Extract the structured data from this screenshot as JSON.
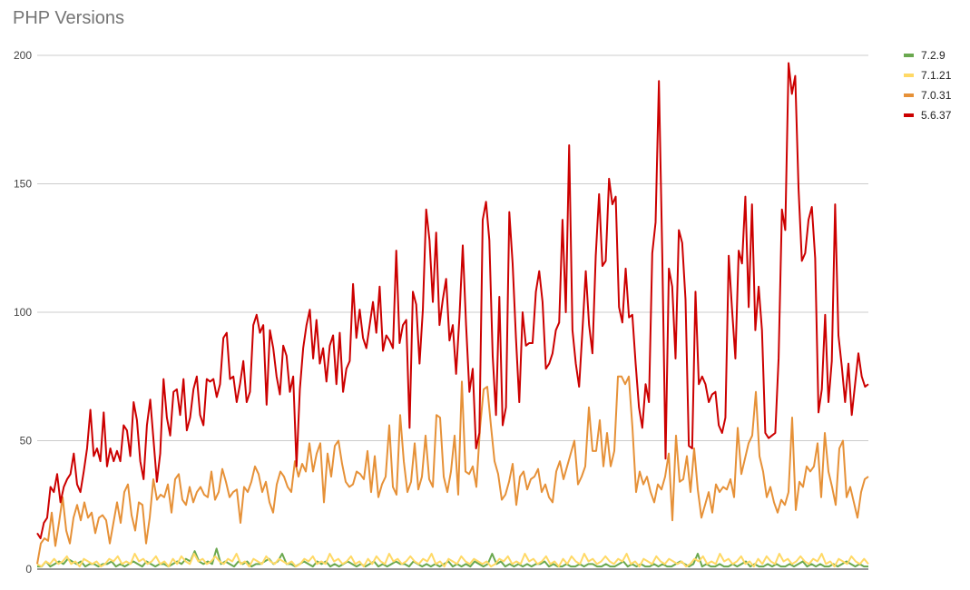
{
  "chart_data": {
    "type": "line",
    "title": "PHP Versions",
    "xlabel": "",
    "ylabel": "",
    "ylim": [
      0,
      200
    ],
    "yticks": [
      0,
      50,
      100,
      150,
      200
    ],
    "grid": true,
    "legend": "right",
    "series": [
      {
        "name": "7.2.9",
        "color": "#6aa84f",
        "values": [
          1,
          1,
          3,
          1,
          2,
          3,
          2,
          4,
          3,
          2,
          3,
          1,
          2,
          2,
          1,
          2,
          2,
          3,
          1,
          2,
          1,
          2,
          3,
          2,
          1,
          3,
          2,
          1,
          2,
          2,
          1,
          2,
          3,
          2,
          4,
          3,
          7,
          3,
          2,
          3,
          2,
          8,
          2,
          3,
          2,
          1,
          3,
          2,
          3,
          1,
          2,
          2,
          3,
          4,
          2,
          3,
          6,
          2,
          2,
          1,
          2,
          3,
          2,
          1,
          3,
          2,
          3,
          1,
          2,
          1,
          2,
          3,
          2,
          1,
          2,
          1,
          2,
          3,
          1,
          2,
          1,
          2,
          3,
          2,
          2,
          1,
          3,
          2,
          1,
          2,
          1,
          2,
          1,
          2,
          3,
          1,
          2,
          1,
          2,
          1,
          3,
          2,
          1,
          2,
          6,
          2,
          3,
          1,
          2,
          1,
          2,
          1,
          2,
          1,
          2,
          2,
          3,
          1,
          2,
          1,
          1,
          2,
          1,
          1,
          2,
          1,
          2,
          2,
          1,
          1,
          2,
          1,
          1,
          2,
          3,
          1,
          2,
          1,
          2,
          1,
          1,
          2,
          1,
          2,
          1,
          1,
          2,
          3,
          2,
          1,
          2,
          6,
          1,
          2,
          1,
          1,
          2,
          1,
          1,
          2,
          1,
          2,
          3,
          1,
          2,
          1,
          1,
          2,
          1,
          2,
          1,
          1,
          2,
          1,
          2,
          3,
          1,
          2,
          1,
          2,
          1,
          1,
          2,
          1,
          2,
          3,
          2,
          1,
          2,
          1,
          1
        ]
      },
      {
        "name": "7.1.21",
        "color": "#ffd966",
        "values": [
          2,
          1,
          3,
          2,
          4,
          2,
          3,
          5,
          2,
          3,
          1,
          4,
          3,
          2,
          3,
          1,
          2,
          4,
          3,
          5,
          2,
          3,
          2,
          6,
          3,
          4,
          2,
          3,
          5,
          2,
          3,
          1,
          4,
          2,
          5,
          3,
          2,
          6,
          3,
          4,
          2,
          3,
          5,
          3,
          2,
          4,
          3,
          6,
          2,
          3,
          1,
          4,
          3,
          2,
          5,
          3,
          2,
          4,
          3,
          2,
          3,
          1,
          2,
          4,
          3,
          5,
          2,
          3,
          2,
          6,
          3,
          4,
          2,
          3,
          5,
          2,
          3,
          1,
          4,
          2,
          5,
          3,
          2,
          6,
          3,
          4,
          2,
          3,
          5,
          3,
          2,
          4,
          3,
          6,
          2,
          3,
          1,
          4,
          3,
          2,
          5,
          3,
          2,
          4,
          3,
          2,
          3,
          1,
          2,
          4,
          3,
          5,
          2,
          3,
          2,
          6,
          3,
          4,
          2,
          3,
          5,
          2,
          3,
          1,
          4,
          2,
          5,
          3,
          2,
          6,
          3,
          4,
          2,
          3,
          5,
          3,
          2,
          4,
          3,
          6,
          2,
          3,
          1,
          4,
          3,
          2,
          5,
          3,
          2,
          4,
          3,
          2,
          3,
          1,
          2,
          4,
          3,
          5,
          2,
          3,
          2,
          6,
          3,
          4,
          2,
          3,
          5,
          2,
          3,
          1,
          4,
          2,
          5,
          3,
          2,
          6,
          3,
          4,
          2,
          3,
          5,
          3,
          2,
          4,
          3,
          6,
          2,
          3,
          1,
          4,
          3,
          2,
          5,
          3,
          2,
          4,
          2
        ]
      },
      {
        "name": "7.0.31",
        "color": "#e69138",
        "values": [
          2,
          10,
          12,
          11,
          22,
          9,
          18,
          28,
          15,
          10,
          20,
          25,
          19,
          26,
          20,
          22,
          14,
          20,
          21,
          19,
          10,
          18,
          26,
          18,
          30,
          33,
          21,
          15,
          26,
          25,
          10,
          20,
          35,
          27,
          29,
          28,
          33,
          22,
          35,
          37,
          27,
          25,
          32,
          26,
          30,
          32,
          29,
          28,
          38,
          27,
          30,
          39,
          34,
          28,
          30,
          31,
          18,
          32,
          30,
          34,
          40,
          37,
          30,
          34,
          26,
          22,
          33,
          38,
          36,
          32,
          30,
          42,
          36,
          41,
          38,
          49,
          38,
          45,
          49,
          26,
          45,
          36,
          48,
          50,
          41,
          34,
          32,
          33,
          38,
          37,
          35,
          46,
          30,
          44,
          28,
          33,
          36,
          56,
          32,
          29,
          60,
          42,
          30,
          34,
          49,
          31,
          36,
          52,
          35,
          32,
          60,
          59,
          36,
          30,
          38,
          52,
          29,
          73,
          38,
          37,
          40,
          32,
          55,
          70,
          71,
          56,
          42,
          37,
          27,
          29,
          34,
          41,
          25,
          36,
          38,
          31,
          35,
          36,
          39,
          30,
          33,
          28,
          26,
          38,
          42,
          35,
          40,
          45,
          50,
          33,
          36,
          40,
          63,
          46,
          46,
          58,
          40,
          53,
          40,
          46,
          75,
          75,
          72,
          75,
          55,
          30,
          38,
          33,
          36,
          30,
          26,
          33,
          31,
          36,
          45,
          19,
          52,
          34,
          35,
          44,
          30,
          47,
          31,
          20,
          25,
          30,
          22,
          33,
          30,
          32,
          31,
          35,
          28,
          55,
          37,
          43,
          49,
          52,
          69,
          44,
          38,
          28,
          32,
          26,
          22,
          27,
          25,
          30,
          59,
          23,
          34,
          32,
          40,
          38,
          40,
          49,
          28,
          53,
          38,
          32,
          25,
          47,
          50,
          28,
          32,
          26,
          20,
          30,
          35,
          36
        ]
      },
      {
        "name": "5.6.37",
        "color": "#cc0000",
        "values": [
          14,
          12,
          18,
          20,
          32,
          30,
          37,
          26,
          32,
          35,
          37,
          45,
          33,
          30,
          38,
          47,
          62,
          44,
          47,
          42,
          61,
          40,
          47,
          42,
          46,
          42,
          56,
          54,
          44,
          65,
          58,
          42,
          35,
          56,
          66,
          50,
          34,
          45,
          74,
          59,
          52,
          69,
          70,
          60,
          74,
          54,
          59,
          70,
          75,
          60,
          56,
          74,
          73,
          74,
          67,
          72,
          90,
          92,
          74,
          75,
          65,
          72,
          81,
          65,
          69,
          95,
          99,
          92,
          95,
          64,
          93,
          86,
          75,
          68,
          87,
          83,
          69,
          75,
          40,
          70,
          86,
          95,
          101,
          82,
          97,
          80,
          86,
          73,
          87,
          91,
          72,
          92,
          69,
          78,
          81,
          111,
          90,
          101,
          90,
          86,
          95,
          104,
          92,
          110,
          85,
          91,
          89,
          86,
          124,
          88,
          95,
          97,
          55,
          108,
          103,
          80,
          101,
          140,
          128,
          104,
          131,
          95,
          105,
          113,
          89,
          95,
          76,
          98,
          126,
          95,
          69,
          78,
          47,
          53,
          136,
          143,
          128,
          83,
          60,
          106,
          56,
          63,
          139,
          119,
          90,
          65,
          100,
          87,
          88,
          88,
          108,
          116,
          104,
          78,
          80,
          84,
          93,
          96,
          136,
          100,
          165,
          93,
          80,
          71,
          93,
          116,
          95,
          84,
          122,
          146,
          118,
          120,
          152,
          142,
          145,
          102,
          96,
          117,
          98,
          99,
          80,
          63,
          55,
          72,
          65,
          123,
          135,
          190,
          123,
          43,
          117,
          110,
          82,
          132,
          127,
          105,
          48,
          47,
          108,
          72,
          75,
          72,
          65,
          68,
          69,
          56,
          53,
          59,
          122,
          101,
          82,
          124,
          119,
          145,
          102,
          142,
          93,
          110,
          93,
          53,
          51,
          52,
          53,
          82,
          140,
          132,
          197,
          185,
          192,
          148,
          120,
          123,
          136,
          141,
          121,
          61,
          70,
          99,
          65,
          81,
          142,
          91,
          79,
          65,
          80,
          60,
          72,
          84,
          75,
          71,
          72
        ]
      }
    ]
  }
}
